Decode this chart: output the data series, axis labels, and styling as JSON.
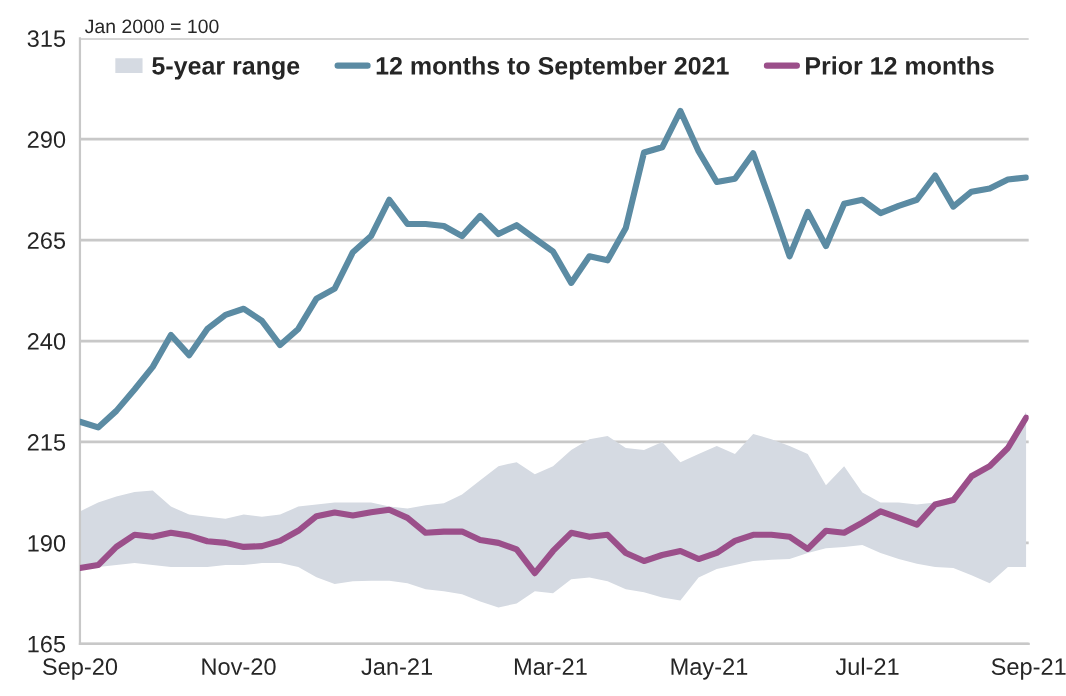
{
  "chart_data": {
    "type": "line",
    "annotations": [
      "Jan 2000 = 100"
    ],
    "x": [
      "2020-09-01",
      "2020-09-08",
      "2020-09-15",
      "2020-09-22",
      "2020-09-29",
      "2020-10-06",
      "2020-10-13",
      "2020-10-20",
      "2020-10-27",
      "2020-11-03",
      "2020-11-10",
      "2020-11-17",
      "2020-11-24",
      "2020-12-01",
      "2020-12-08",
      "2020-12-15",
      "2020-12-22",
      "2020-12-29",
      "2021-01-05",
      "2021-01-12",
      "2021-01-19",
      "2021-01-26",
      "2021-02-02",
      "2021-02-09",
      "2021-02-16",
      "2021-02-23",
      "2021-03-02",
      "2021-03-09",
      "2021-03-16",
      "2021-03-23",
      "2021-03-30",
      "2021-04-06",
      "2021-04-13",
      "2021-04-20",
      "2021-04-27",
      "2021-05-04",
      "2021-05-11",
      "2021-05-18",
      "2021-05-25",
      "2021-06-01",
      "2021-06-08",
      "2021-06-15",
      "2021-06-22",
      "2021-06-29",
      "2021-07-06",
      "2021-07-13",
      "2021-07-20",
      "2021-07-27",
      "2021-08-03",
      "2021-08-10",
      "2021-08-17",
      "2021-08-24",
      "2021-08-31"
    ],
    "series": [
      {
        "name": "5-year range",
        "type": "area",
        "color": "#d5dae2",
        "lower": [
          183.5,
          184,
          184.5,
          185,
          184.5,
          184,
          184,
          184,
          184.5,
          184.5,
          185,
          185,
          184,
          181.5,
          179.8,
          180.5,
          180.6,
          180.6,
          180,
          178.5,
          178,
          177.3,
          175.5,
          174,
          175,
          178,
          177.5,
          181,
          181.4,
          180.5,
          178.5,
          177.8,
          176.5,
          175.7,
          181.4,
          183.5,
          184.5,
          185.5,
          185.8,
          186,
          187.5,
          188.7,
          189,
          189.5,
          187.5,
          186,
          184.8,
          184,
          183.8,
          182,
          180,
          184,
          184
        ],
        "values": [
          null,
          null,
          null,
          null,
          null,
          null,
          null,
          null,
          null,
          null,
          null,
          null,
          null,
          null,
          null,
          null,
          null,
          null,
          null,
          null,
          null,
          null,
          null,
          null,
          null,
          null,
          null,
          null,
          null,
          null,
          null,
          null,
          null,
          null,
          null,
          null,
          null,
          null,
          null,
          null,
          null,
          null,
          null,
          null,
          null,
          null,
          null,
          null,
          null,
          null,
          null,
          null,
          null
        ],
        "upper": [
          197.8,
          200,
          201.5,
          202.6,
          203,
          199,
          197,
          196.5,
          196,
          197,
          196.5,
          197,
          199,
          199.5,
          200,
          200,
          200,
          199,
          198.5,
          199.3,
          199.8,
          202,
          205.5,
          209,
          210,
          207,
          209,
          213,
          215.7,
          216.5,
          213.5,
          213,
          215,
          210,
          212,
          214,
          212,
          217,
          215.7,
          214,
          212,
          204.3,
          209,
          202.5,
          200,
          200,
          199.5,
          200,
          201.5,
          207,
          209.5,
          214,
          222.5
        ]
      },
      {
        "name": "12 months to September 2021",
        "color": "#5b8ba3",
        "values": [
          220,
          218.6,
          222.7,
          228,
          233.6,
          241.5,
          236.5,
          243,
          246.5,
          248,
          245,
          239,
          243,
          250.5,
          253,
          262,
          266,
          275,
          269,
          269,
          268.5,
          266,
          271,
          266.5,
          268.7,
          265.4,
          262.2,
          254.4,
          261,
          260,
          268,
          286.7,
          288,
          297,
          287,
          279.4,
          280.2,
          286.5,
          274,
          261,
          272,
          263.5,
          274,
          275,
          271.7,
          273.5,
          275,
          281,
          273.3,
          277,
          277.8,
          280,
          280.5
        ]
      },
      {
        "name": "Prior 12 months",
        "color": "#9b4f8a",
        "values": [
          183.8,
          184.5,
          189,
          192,
          191.5,
          192.5,
          191.8,
          190.4,
          190,
          189,
          189.2,
          190.5,
          193,
          196.6,
          197.5,
          196.8,
          197.6,
          198.2,
          196.2,
          192.5,
          192.8,
          192.8,
          190.7,
          190,
          188.4,
          182.5,
          188,
          192.5,
          191.5,
          192,
          187.5,
          185.5,
          187,
          188,
          186,
          187.5,
          190.5,
          192,
          192,
          191.5,
          188.5,
          193,
          192.5,
          195,
          197.8,
          196.2,
          194.5,
          199.5,
          200.6,
          206.5,
          209,
          213.5,
          221
        ]
      }
    ],
    "xlim": [
      "2020-09-01",
      "2021-09-01"
    ],
    "xticks": [
      {
        "value": "2020-09-01",
        "label": "Sep-20"
      },
      {
        "value": "2020-11-01",
        "label": "Nov-20"
      },
      {
        "value": "2021-01-01",
        "label": "Jan-21"
      },
      {
        "value": "2021-03-01",
        "label": "Mar-21"
      },
      {
        "value": "2021-05-01",
        "label": "May-21"
      },
      {
        "value": "2021-07-01",
        "label": "Jul-21"
      },
      {
        "value": "2021-09-01",
        "label": "Sep-21"
      }
    ],
    "ylim": [
      165,
      315
    ],
    "yticks": [
      165,
      190,
      215,
      240,
      265,
      290,
      315
    ],
    "grid": "y",
    "legend": "top",
    "marker": "none",
    "line_style": "solid"
  }
}
